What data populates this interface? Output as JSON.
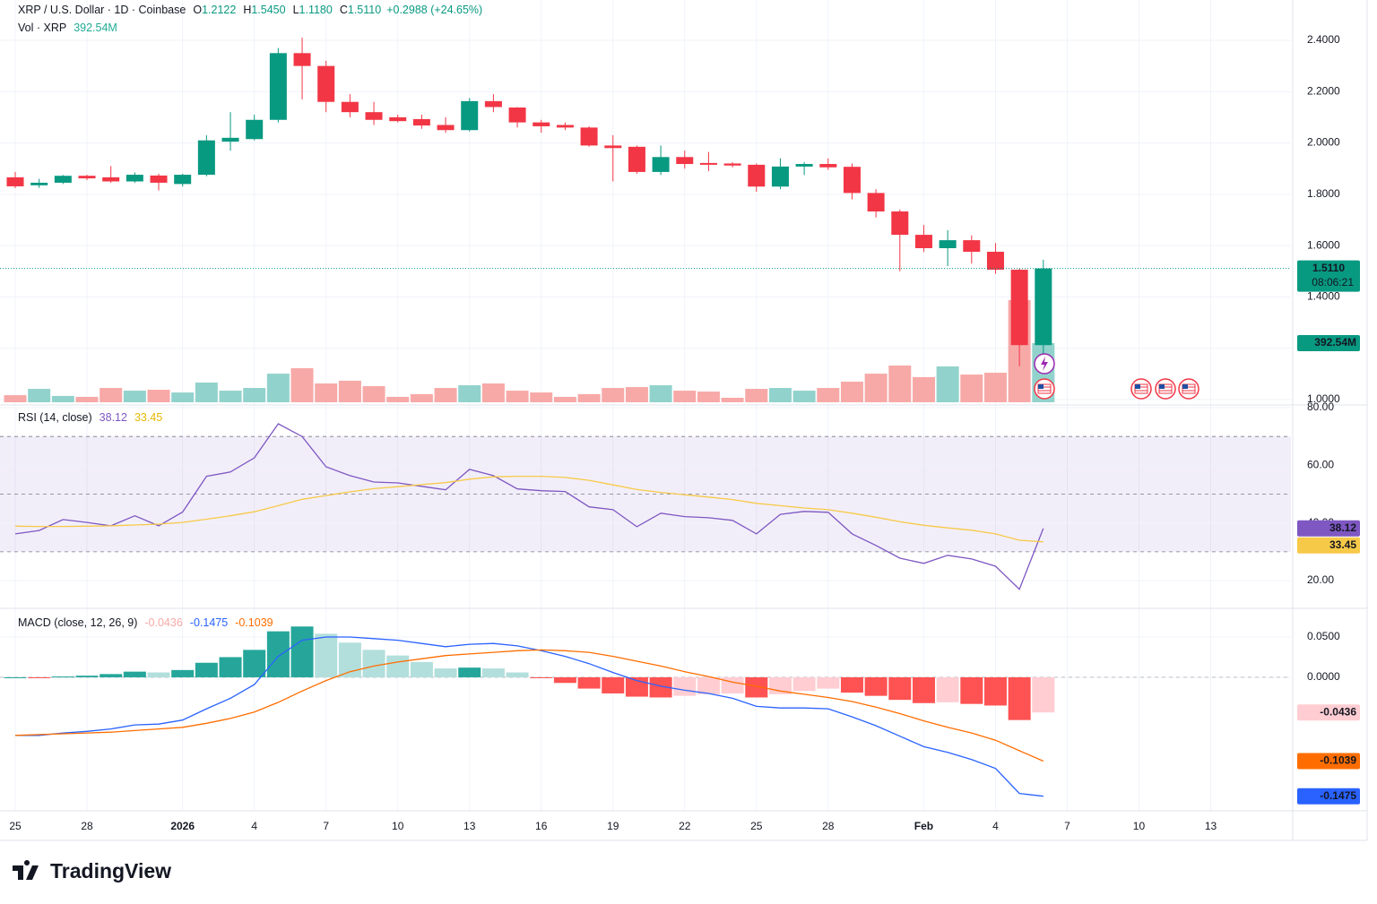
{
  "chart_data": [
    {
      "type": "candlestick",
      "title": "XRP / U.S. Dollar · 1D · Coinbase",
      "header": [
        {
          "key": "O",
          "text": "1.2122"
        },
        {
          "key": "H",
          "text": "1.5450"
        },
        {
          "key": "L",
          "text": "1.1180"
        },
        {
          "key": "C",
          "text": "1.5110"
        }
      ],
      "change": "+0.2988 (+24.65%)",
      "categories": [
        "25",
        null,
        null,
        "28",
        null,
        null,
        null,
        "2026",
        null,
        null,
        "4",
        null,
        null,
        "7",
        null,
        null,
        "10",
        null,
        null,
        "13",
        null,
        null,
        "16",
        null,
        null,
        "19",
        null,
        null,
        "22",
        null,
        null,
        "25",
        null,
        null,
        "28",
        null,
        null,
        null,
        "Feb",
        null,
        null,
        "4",
        null,
        null,
        "7",
        null,
        null,
        "10",
        null,
        null,
        "13"
      ],
      "open": [
        1.866,
        1.835,
        1.845,
        1.872,
        1.866,
        1.85,
        1.873,
        1.84,
        1.876,
        2.005,
        2.015,
        2.09,
        2.35,
        2.3,
        2.16,
        2.12,
        2.1,
        2.093,
        2.07,
        2.05,
        2.163,
        2.138,
        2.08,
        2.07,
        2.06,
        1.99,
        1.985,
        1.887,
        1.945,
        1.922,
        1.92,
        1.915,
        1.83,
        1.908,
        1.918,
        1.907,
        1.805,
        1.733,
        1.642,
        1.59,
        1.621,
        1.576,
        1.506,
        1.2122,
        null,
        null,
        null,
        null,
        null,
        null,
        null
      ],
      "high": [
        1.887,
        1.86,
        1.875,
        1.876,
        1.91,
        1.885,
        1.88,
        1.88,
        2.03,
        2.12,
        2.11,
        2.37,
        2.41,
        2.32,
        2.19,
        2.16,
        2.11,
        2.11,
        2.1,
        2.175,
        2.19,
        2.14,
        2.09,
        2.08,
        2.065,
        2.03,
        1.99,
        1.99,
        1.97,
        1.965,
        1.925,
        1.92,
        1.94,
        1.925,
        1.94,
        1.92,
        1.82,
        1.74,
        1.68,
        1.66,
        1.64,
        1.61,
        1.51,
        1.545,
        null,
        null,
        null,
        null,
        null,
        null,
        null
      ],
      "low": [
        1.824,
        1.825,
        1.84,
        1.855,
        1.845,
        1.845,
        1.815,
        1.83,
        1.87,
        1.97,
        2.01,
        2.08,
        2.17,
        2.12,
        2.1,
        2.07,
        2.08,
        2.055,
        2.04,
        2.045,
        2.12,
        2.06,
        2.04,
        2.05,
        1.985,
        1.85,
        1.88,
        1.875,
        1.9,
        1.89,
        1.905,
        1.81,
        1.82,
        1.875,
        1.895,
        1.78,
        1.71,
        1.5,
        1.575,
        1.52,
        1.53,
        1.49,
        1.13,
        1.118,
        null,
        null,
        null,
        null,
        null,
        null,
        null
      ],
      "close": [
        1.831,
        1.845,
        1.872,
        1.862,
        1.85,
        1.876,
        1.845,
        1.876,
        2.01,
        2.02,
        2.09,
        2.35,
        2.3,
        2.16,
        2.12,
        2.09,
        2.085,
        2.068,
        2.05,
        2.163,
        2.14,
        2.08,
        2.065,
        2.06,
        1.99,
        1.98,
        1.887,
        1.945,
        1.918,
        1.915,
        1.912,
        1.83,
        1.908,
        1.918,
        1.905,
        1.805,
        1.733,
        1.642,
        1.59,
        1.621,
        1.576,
        1.506,
        1.2122,
        1.511,
        null,
        null,
        null,
        null,
        null,
        null,
        null
      ],
      "up_color": "#089981",
      "down_color": "#f23645",
      "ylim": [
        0.979,
        2.557
      ],
      "yticks": [
        {
          "value": 1,
          "label": "1.0000"
        },
        {
          "value": 1.2,
          "label": "1.2000"
        },
        {
          "value": 1.4,
          "label": "1.4000"
        },
        {
          "value": 1.6,
          "label": "1.6000"
        },
        {
          "value": 1.8,
          "label": "1.8000"
        },
        {
          "value": 2,
          "label": "2.0000"
        },
        {
          "value": 2.2,
          "label": "2.2000"
        },
        {
          "value": 2.4,
          "label": "2.4000"
        }
      ],
      "last_price": {
        "value": 1.511,
        "label": "1.5110",
        "countdown": "08:06:21"
      },
      "volume": {
        "title": "Vol · XRP",
        "last_label": "392.54M",
        "up_color": "#92d2cc",
        "down_color": "#f7a9a7",
        "values": [
          47,
          89,
          42,
          36,
          95,
          77,
          83,
          65,
          131,
          77,
          95,
          190,
          226,
          125,
          143,
          107,
          36,
          54,
          95,
          113,
          125,
          77,
          65,
          36,
          54,
          95,
          101,
          113,
          77,
          71,
          30,
          89,
          95,
          77,
          95,
          137,
          190,
          244,
          167,
          238,
          184,
          196,
          678,
          392.54,
          null,
          null,
          null,
          null,
          null,
          null,
          null
        ]
      },
      "footer": "TradingView"
    },
    {
      "type": "line",
      "title": "RSI (14, close)",
      "ylim": [
        10.7,
        80.93
      ],
      "yticks": [
        {
          "value": 20,
          "label": "20.00"
        },
        {
          "value": 40,
          "label": "40.00"
        },
        {
          "value": 60,
          "label": "60.00"
        },
        {
          "value": 80,
          "label": "80.00"
        }
      ],
      "bands": [
        30,
        50,
        70
      ],
      "series": [
        {
          "color": "#7e57c2",
          "last_label": "38.12",
          "values": [
            36.2,
            37.4,
            41.2,
            40.2,
            39,
            42.5,
            39,
            43.8,
            56.2,
            57.7,
            62.6,
            74.4,
            70,
            59.5,
            56.4,
            54.2,
            53.9,
            52.7,
            51.5,
            58.6,
            56.4,
            51.8,
            51.2,
            50.9,
            45.6,
            44.6,
            38.7,
            43.4,
            42.2,
            41.8,
            40.9,
            36.2,
            43,
            44,
            43.7,
            36.2,
            32.2,
            27.8,
            26,
            28.8,
            27.5,
            25,
            17,
            38.12,
            null,
            null,
            null,
            null,
            null,
            null,
            null
          ]
        },
        {
          "color": "#f7c948",
          "last_label": "33.45",
          "values": [
            38.9,
            38.8,
            38.8,
            38.9,
            39,
            39.3,
            39.6,
            40.2,
            41.3,
            42.5,
            43.9,
            46,
            48.2,
            49.5,
            50.8,
            51.9,
            52.6,
            53.3,
            54,
            55.2,
            56,
            56.2,
            56.2,
            55.8,
            54.8,
            53.2,
            51.6,
            50.6,
            49.8,
            49,
            48.1,
            46.8,
            46,
            45.2,
            44.6,
            43.4,
            42,
            40.4,
            39.2,
            38.3,
            37.5,
            36.2,
            34,
            33.45,
            null,
            null,
            null,
            null,
            null,
            null,
            null
          ]
        }
      ]
    },
    {
      "type": "macd",
      "title": "MACD (close, 12, 26, 9)",
      "ylim": [
        -0.1656,
        0.0844
      ],
      "yticks": [
        {
          "value": 0,
          "label": "0.0000"
        },
        {
          "value": 0.05,
          "label": "0.0500"
        }
      ],
      "histogram": {
        "last_label": "-0.0436",
        "colors": [
          "#26a69a",
          "#b2dfdb",
          "#ff5252",
          "#ffcdd2"
        ],
        "values": [
          0,
          -0.001,
          0.001,
          0.002,
          0.004,
          0.007,
          0.006,
          0.009,
          0.018,
          0.025,
          0.034,
          0.057,
          0.063,
          0.054,
          0.043,
          0.034,
          0.027,
          0.019,
          0.011,
          0.012,
          0.011,
          0.006,
          -0.001,
          -0.007,
          -0.014,
          -0.02,
          -0.024,
          -0.025,
          -0.023,
          -0.021,
          -0.02,
          -0.025,
          -0.021,
          -0.017,
          -0.014,
          -0.019,
          -0.023,
          -0.028,
          -0.032,
          -0.031,
          -0.033,
          -0.035,
          -0.053,
          -0.0436,
          null,
          null,
          null,
          null,
          null,
          null,
          null
        ]
      },
      "series": [
        {
          "color": "#2962ff",
          "last_label": "-0.1475",
          "values": [
            -0.072,
            -0.072,
            -0.069,
            -0.067,
            -0.064,
            -0.059,
            -0.058,
            -0.053,
            -0.039,
            -0.026,
            -0.009,
            0.026,
            0.046,
            0.05,
            0.05,
            0.048,
            0.046,
            0.042,
            0.038,
            0.041,
            0.042,
            0.039,
            0.033,
            0.026,
            0.017,
            0.006,
            -0.004,
            -0.011,
            -0.016,
            -0.02,
            -0.026,
            -0.036,
            -0.038,
            -0.038,
            -0.039,
            -0.049,
            -0.06,
            -0.073,
            -0.086,
            -0.093,
            -0.102,
            -0.113,
            -0.144,
            -0.1475,
            null,
            null,
            null,
            null,
            null,
            null,
            null
          ]
        },
        {
          "color": "#ff6d00",
          "last_label": "-0.1039",
          "values": [
            -0.072,
            -0.071,
            -0.07,
            -0.069,
            -0.068,
            -0.066,
            -0.064,
            -0.062,
            -0.057,
            -0.051,
            -0.043,
            -0.031,
            -0.017,
            -0.004,
            0.007,
            0.014,
            0.019,
            0.023,
            0.027,
            0.029,
            0.031,
            0.033,
            0.034,
            0.033,
            0.031,
            0.026,
            0.02,
            0.014,
            0.007,
            0.001,
            -0.006,
            -0.011,
            -0.017,
            -0.021,
            -0.025,
            -0.03,
            -0.037,
            -0.045,
            -0.054,
            -0.062,
            -0.069,
            -0.078,
            -0.091,
            -0.1039,
            null,
            null,
            null,
            null,
            null,
            null,
            null
          ]
        }
      ]
    }
  ]
}
